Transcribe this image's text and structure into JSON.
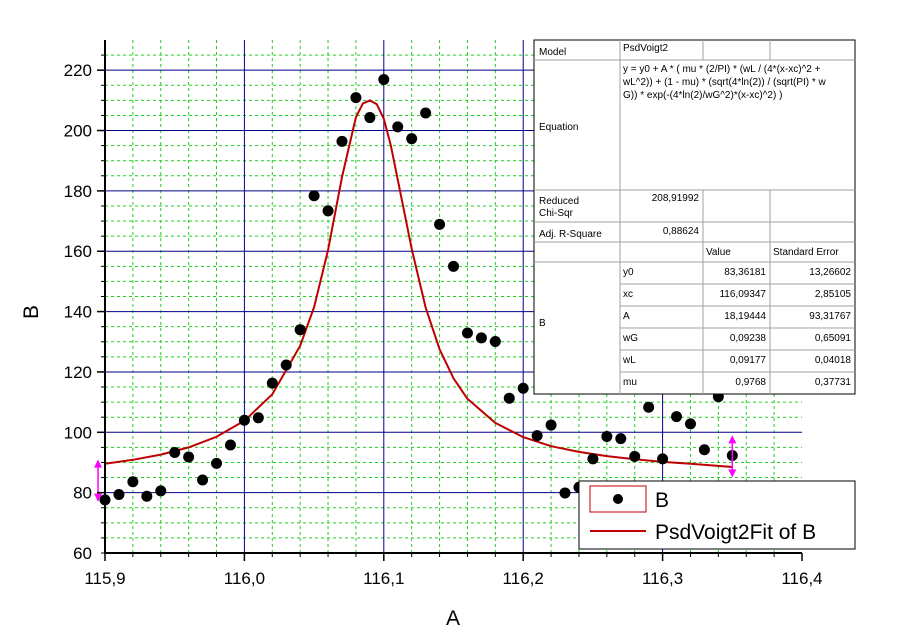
{
  "chart_data": {
    "type": "scatter",
    "xlabel": "A",
    "ylabel": "B",
    "xlim": [
      115.9,
      116.4
    ],
    "ylim": [
      60,
      230
    ],
    "x_ticks": [
      "115,9",
      "116,0",
      "116,1",
      "116,2",
      "116,3",
      "116,4"
    ],
    "y_ticks": [
      "60",
      "80",
      "100",
      "120",
      "140",
      "160",
      "180",
      "200",
      "220"
    ],
    "grid": true,
    "legend_position": "bottom-right",
    "series": [
      {
        "name": "B",
        "type": "scatter",
        "color": "#000000",
        "x": [
          115.9,
          115.91,
          115.92,
          115.93,
          115.94,
          115.95,
          115.96,
          115.97,
          115.98,
          115.99,
          116.0,
          116.01,
          116.02,
          116.03,
          116.04,
          116.05,
          116.06,
          116.07,
          116.08,
          116.09,
          116.1,
          116.11,
          116.12,
          116.13,
          116.14,
          116.15,
          116.16,
          116.17,
          116.18,
          116.19,
          116.2,
          116.21,
          116.22,
          116.23,
          116.24,
          116.25,
          116.26,
          116.27,
          116.28,
          116.29,
          116.3,
          116.31,
          116.32,
          116.33,
          116.34,
          116.35
        ],
        "y": [
          77.6,
          79.4,
          83.6,
          78.8,
          80.6,
          93.3,
          91.8,
          84.2,
          89.7,
          95.8,
          104.0,
          104.8,
          116.3,
          122.3,
          134.0,
          178.4,
          173.4,
          196.4,
          210.9,
          204.3,
          216.9,
          201.2,
          197.3,
          205.8,
          168.9,
          155.0,
          132.9,
          131.3,
          130.1,
          111.3,
          114.6,
          98.9,
          102.4,
          79.9,
          81.8,
          91.2,
          98.6,
          97.9,
          92.0,
          108.3,
          91.2,
          105.2,
          102.8,
          94.2,
          111.8,
          92.3
        ]
      },
      {
        "name": "PsdVoigt2Fit of B",
        "type": "line",
        "color": "#c00000",
        "x": [
          115.9,
          115.92,
          115.94,
          115.96,
          115.98,
          116.0,
          116.02,
          116.04,
          116.05,
          116.06,
          116.07,
          116.08,
          116.085,
          116.09,
          116.095,
          116.1,
          116.105,
          116.11,
          116.12,
          116.13,
          116.14,
          116.15,
          116.16,
          116.18,
          116.2,
          116.22,
          116.24,
          116.26,
          116.28,
          116.3,
          116.32,
          116.35
        ],
        "y": [
          89.6,
          90.9,
          92.6,
          95.0,
          98.5,
          103.8,
          112.6,
          128.7,
          141.5,
          160.3,
          184.6,
          204.4,
          209.0,
          210.0,
          208.7,
          203.9,
          195.1,
          183.8,
          160.8,
          141.4,
          127.5,
          117.9,
          111.1,
          103.1,
          98.4,
          95.4,
          93.5,
          92.1,
          91.1,
          90.2,
          89.6,
          88.5
        ]
      }
    ],
    "error_markers": [
      {
        "x": 115.895,
        "y": 84
      },
      {
        "x": 116.35,
        "y": 92
      }
    ],
    "table": {
      "rows": [
        {
          "label": "Model",
          "value": "PsdVoigt2"
        },
        {
          "label": "Equation",
          "value_lines": [
            "y = y0 + A * ( mu * (2/PI) * (wL / (4*(x-xc)^2 +",
            "wL^2)) + (1 - mu) * (sqrt(4*ln(2)) / (sqrt(PI) * w",
            "G)) * exp(-(4*ln(2)/wG^2)*(x-xc)^2) )"
          ]
        },
        {
          "label_lines": [
            "Reduced",
            "Chi-Sqr"
          ],
          "value": "208,91992"
        },
        {
          "label": "Adj. R-Square",
          "value": "0,88624"
        }
      ],
      "param_group": "B",
      "header_value": "Value",
      "header_error": "Standard Error",
      "params": [
        {
          "name": "y0",
          "value": "83,36181",
          "error": "13,26602"
        },
        {
          "name": "xc",
          "value": "116,09347",
          "error": "2,85105"
        },
        {
          "name": "A",
          "value": "18,19444",
          "error": "93,31767"
        },
        {
          "name": "wG",
          "value": "0,09238",
          "error": "0,65091"
        },
        {
          "name": "wL",
          "value": "0,09177",
          "error": "0,04018"
        },
        {
          "name": "mu",
          "value": "0,9768",
          "error": "0,37731"
        }
      ]
    }
  }
}
